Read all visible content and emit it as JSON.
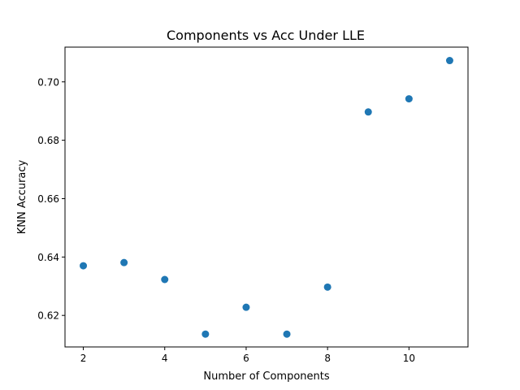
{
  "chart_data": {
    "type": "scatter",
    "title": "Components vs Acc Under LLE",
    "xlabel": "Number of Components",
    "ylabel": "KNN Accuracy",
    "xlim": [
      1.55,
      11.45
    ],
    "ylim": [
      0.6092,
      0.7119
    ],
    "xticks": [
      2,
      4,
      6,
      8,
      10
    ],
    "yticks": [
      0.62,
      0.64,
      0.66,
      0.68,
      0.7
    ],
    "ytick_labels": [
      "0.62",
      "0.64",
      "0.66",
      "0.68",
      "0.70"
    ],
    "grid": false,
    "marker_color": "#1f77b4",
    "series": [
      {
        "x": [
          2,
          3,
          4,
          5,
          6,
          7,
          8,
          9,
          10,
          11
        ],
        "y": [
          0.637,
          0.6381,
          0.6323,
          0.6136,
          0.6228,
          0.6136,
          0.6297,
          0.6897,
          0.6942,
          0.7073
        ]
      }
    ]
  }
}
